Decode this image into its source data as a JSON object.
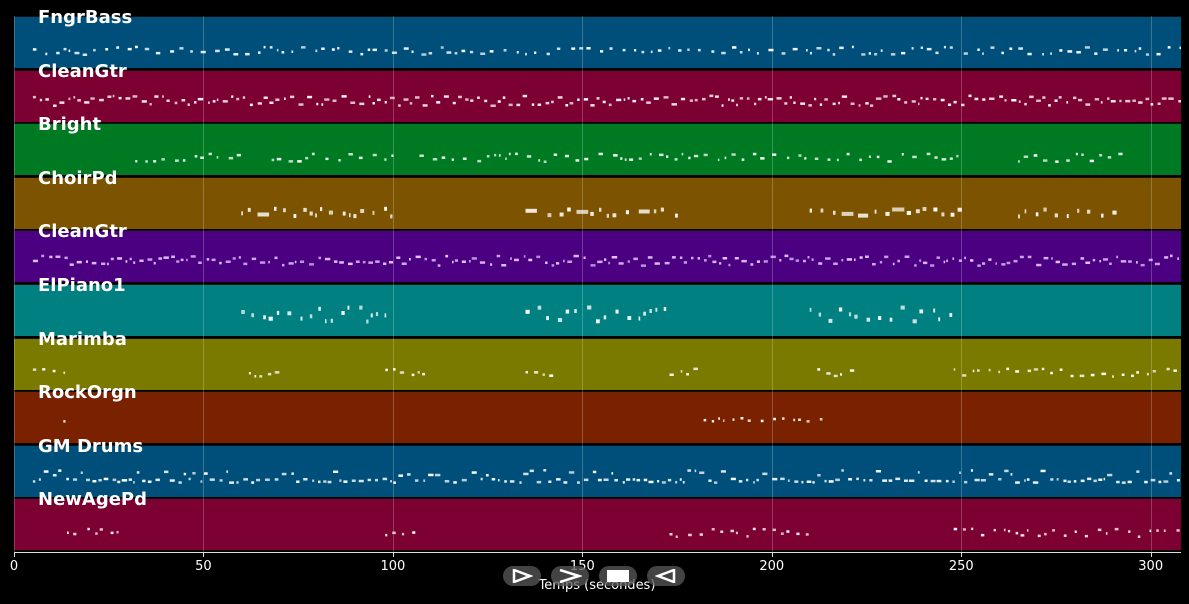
{
  "tracks": [
    {
      "name": "FngrBass",
      "color": "#004f7a",
      "seed": 1,
      "pattern": "sparse-line",
      "density": 0.9
    },
    {
      "name": "CleanGtr",
      "color": "#7c0031",
      "seed": 2,
      "pattern": "dense",
      "density": 1.0
    },
    {
      "name": "Bright",
      "color": "#007a22",
      "seed": 3,
      "pattern": "phrases",
      "density": 0.8
    },
    {
      "name": "ChoirPd",
      "color": "#7c5300",
      "seed": 4,
      "pattern": "phrases-bold",
      "density": 0.7
    },
    {
      "name": "CleanGtr",
      "color": "#4a0080",
      "seed": 5,
      "pattern": "dense-lilac",
      "density": 1.0
    },
    {
      "name": "ElPiano1",
      "color": "#008080",
      "seed": 6,
      "pattern": "chords",
      "density": 0.7
    },
    {
      "name": "Marimba",
      "color": "#7a7a00",
      "seed": 7,
      "pattern": "marimba",
      "density": 0.8
    },
    {
      "name": "RockOrgn",
      "color": "#7a2200",
      "seed": 8,
      "pattern": "organ",
      "density": 0.5
    },
    {
      "name": "GM Drums",
      "color": "#004f7a",
      "seed": 9,
      "pattern": "drums",
      "density": 1.0
    },
    {
      "name": "NewAgePd",
      "color": "#7c0031",
      "seed": 10,
      "pattern": "newage",
      "density": 0.6
    }
  ],
  "axis": {
    "xlabel": "Temps (secondes)",
    "xmin": 0,
    "xmax": 308,
    "ticks": [
      {
        "value": 0,
        "label": "0"
      },
      {
        "value": 50,
        "label": "50"
      },
      {
        "value": 100,
        "label": "100"
      },
      {
        "value": 150,
        "label": "150"
      },
      {
        "value": 200,
        "label": "200"
      },
      {
        "value": 250,
        "label": "250"
      },
      {
        "value": 300,
        "label": "300"
      }
    ]
  },
  "controls": [
    {
      "name": "rewind-button",
      "icon": "rewind-icon"
    },
    {
      "name": "play-button",
      "icon": "play-icon"
    },
    {
      "name": "stop-button",
      "icon": "stop-icon"
    },
    {
      "name": "back-button",
      "icon": "back-icon"
    }
  ]
}
